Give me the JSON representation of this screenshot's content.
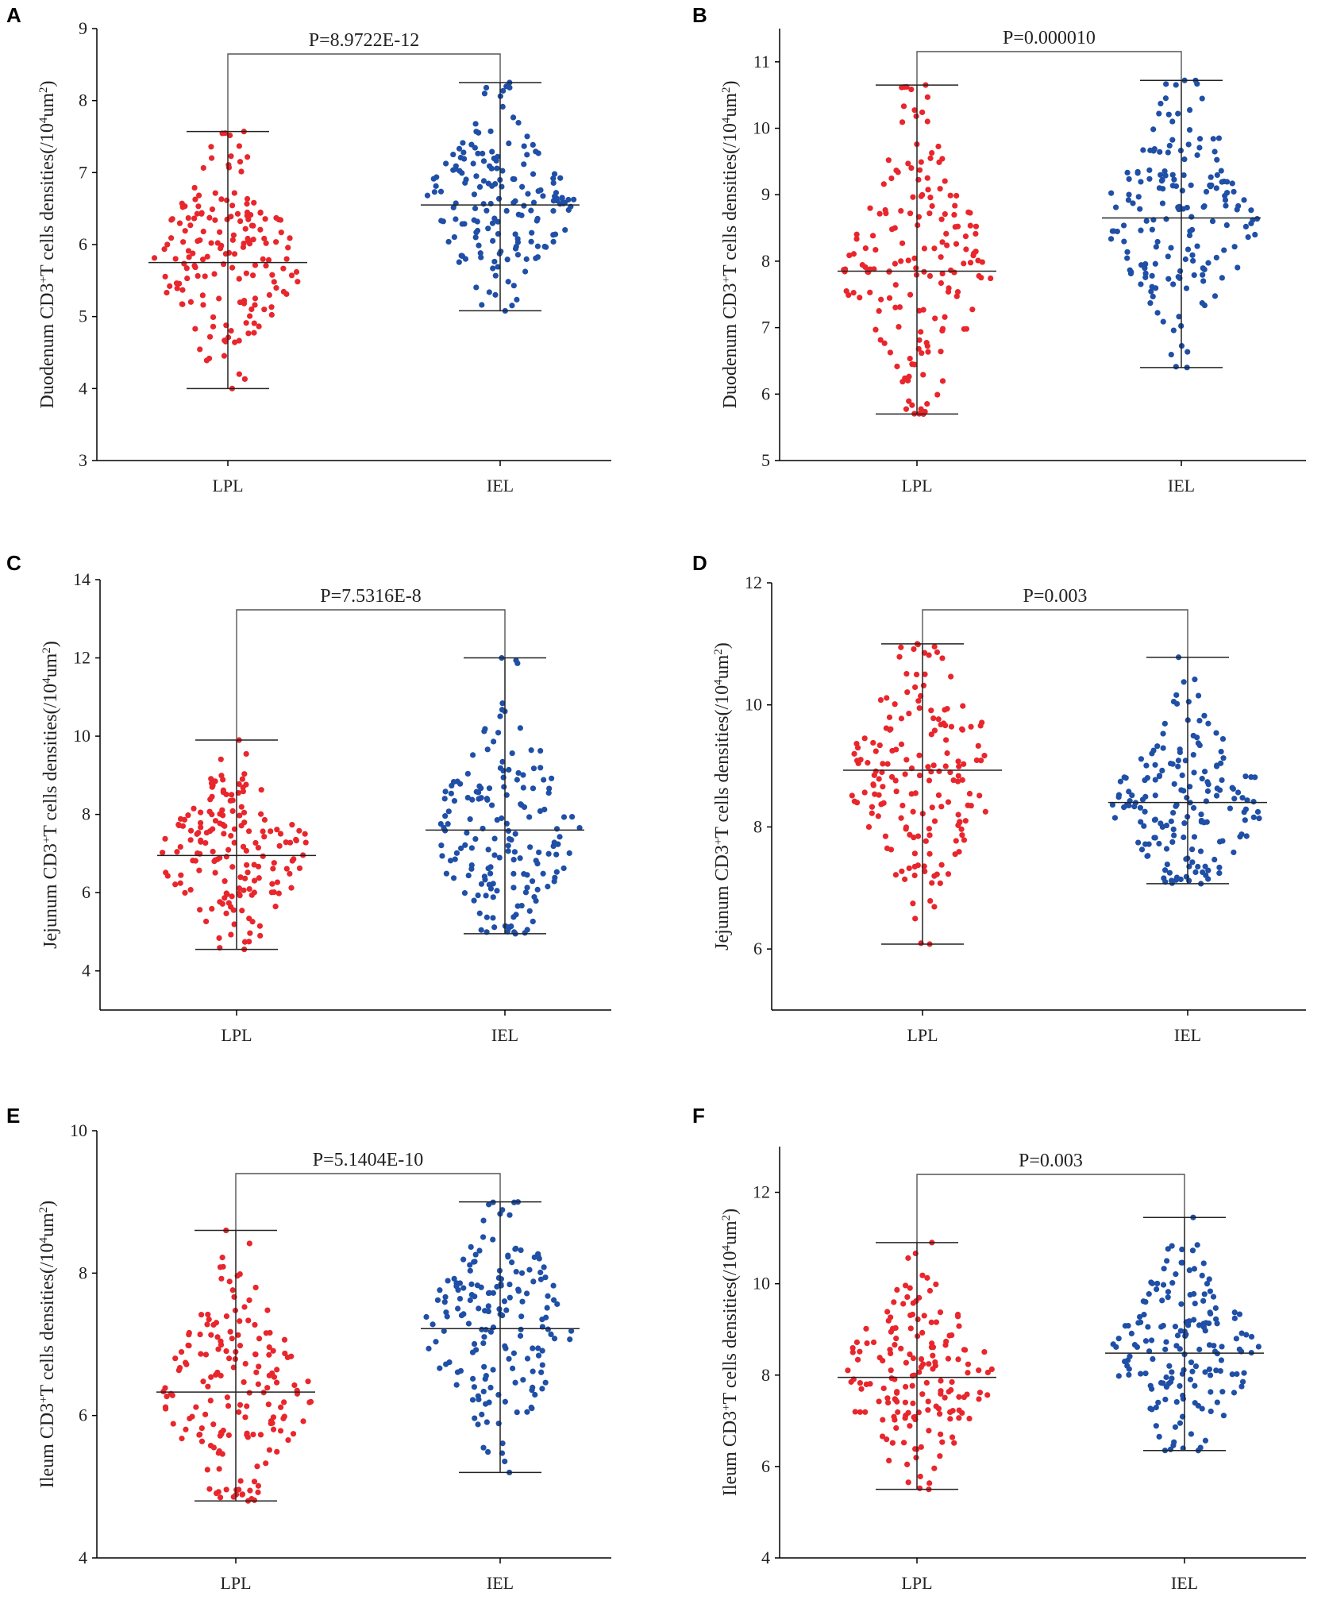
{
  "figure": {
    "colors": {
      "lpl": "#e8262c",
      "iel": "#1f4fa6",
      "axis": "#000000",
      "bracket": "#555555",
      "whisker": "#222222"
    }
  },
  "chart_data": [
    {
      "panel": "A",
      "type": "scatter",
      "ylabel_parts": [
        "Duodenum CD3",
        "+",
        "T cells densities(/10",
        "4",
        "um",
        "2",
        ")"
      ],
      "ylim": [
        3,
        9
      ],
      "yticks": [
        "3",
        "4",
        "5",
        "6",
        "7",
        "8",
        "9"
      ],
      "categories": [
        "LPL",
        "IEL"
      ],
      "p_value": "P=8.9722E-12",
      "series": [
        {
          "name": "LPL",
          "mean": 5.75,
          "min": 4.0,
          "max": 7.57,
          "n": 170
        },
        {
          "name": "IEL",
          "mean": 6.55,
          "min": 5.08,
          "max": 8.25,
          "n": 170
        }
      ]
    },
    {
      "panel": "B",
      "type": "scatter",
      "ylabel_parts": [
        "Duodenum CD3",
        "+",
        "T cells densities(/10",
        "4",
        "um",
        "2",
        ")"
      ],
      "ylim": [
        5,
        11.5
      ],
      "yticks": [
        "5",
        "6",
        "7",
        "8",
        "9",
        "10",
        "11"
      ],
      "categories": [
        "LPL",
        "IEL"
      ],
      "p_value": "P=0.000010",
      "series": [
        {
          "name": "LPL",
          "mean": 7.85,
          "min": 5.7,
          "max": 10.65,
          "n": 170
        },
        {
          "name": "IEL",
          "mean": 8.65,
          "min": 6.4,
          "max": 10.72,
          "n": 170
        }
      ]
    },
    {
      "panel": "C",
      "type": "scatter",
      "ylabel_parts": [
        "Jejunum CD3",
        "+",
        "T cells densities(/10",
        "4",
        "um",
        "2",
        ")"
      ],
      "ylim": [
        3,
        14
      ],
      "yticks": [
        "4",
        "6",
        "8",
        "10",
        "12",
        "14"
      ],
      "categories": [
        "LPL",
        "IEL"
      ],
      "p_value": "P=7.5316E-8",
      "series": [
        {
          "name": "LPL",
          "mean": 6.95,
          "min": 4.55,
          "max": 9.9,
          "n": 170
        },
        {
          "name": "IEL",
          "mean": 7.6,
          "min": 4.95,
          "max": 12.0,
          "n": 170
        }
      ]
    },
    {
      "panel": "D",
      "type": "scatter",
      "ylabel_parts": [
        "Jejunum CD3",
        "+",
        "T cells densities(/10",
        "4",
        "um",
        "2",
        ")"
      ],
      "ylim": [
        5,
        12
      ],
      "yticks": [
        "6",
        "8",
        "10",
        "12"
      ],
      "categories": [
        "LPL",
        "IEL"
      ],
      "p_value": "P=0.003",
      "series": [
        {
          "name": "LPL",
          "mean": 8.93,
          "min": 6.08,
          "max": 11.0,
          "n": 170
        },
        {
          "name": "IEL",
          "mean": 8.4,
          "min": 7.07,
          "max": 10.78,
          "n": 170
        }
      ]
    },
    {
      "panel": "E",
      "type": "scatter",
      "ylabel_parts": [
        "Ileum CD3",
        "+",
        "T cells densities(/10",
        "4",
        "um",
        "2",
        ")"
      ],
      "ylim": [
        4,
        10
      ],
      "yticks": [
        "4",
        "6",
        "8",
        "10"
      ],
      "categories": [
        "LPL",
        "IEL"
      ],
      "p_value": "P=5.1404E-10",
      "series": [
        {
          "name": "LPL",
          "mean": 6.33,
          "min": 4.8,
          "max": 8.6,
          "n": 170
        },
        {
          "name": "IEL",
          "mean": 7.22,
          "min": 5.2,
          "max": 9.0,
          "n": 170
        }
      ]
    },
    {
      "panel": "F",
      "type": "scatter",
      "ylabel_parts": [
        "Ileum CD3",
        "+",
        "T cells densities(/10",
        "4",
        "um",
        "2",
        ")"
      ],
      "ylim": [
        4,
        13
      ],
      "yticks": [
        "4",
        "6",
        "8",
        "10",
        "12"
      ],
      "categories": [
        "LPL",
        "IEL"
      ],
      "p_value": "P=0.003",
      "series": [
        {
          "name": "LPL",
          "mean": 7.95,
          "min": 5.5,
          "max": 10.9,
          "n": 170
        },
        {
          "name": "IEL",
          "mean": 8.48,
          "min": 6.35,
          "max": 11.45,
          "n": 170
        }
      ]
    }
  ]
}
